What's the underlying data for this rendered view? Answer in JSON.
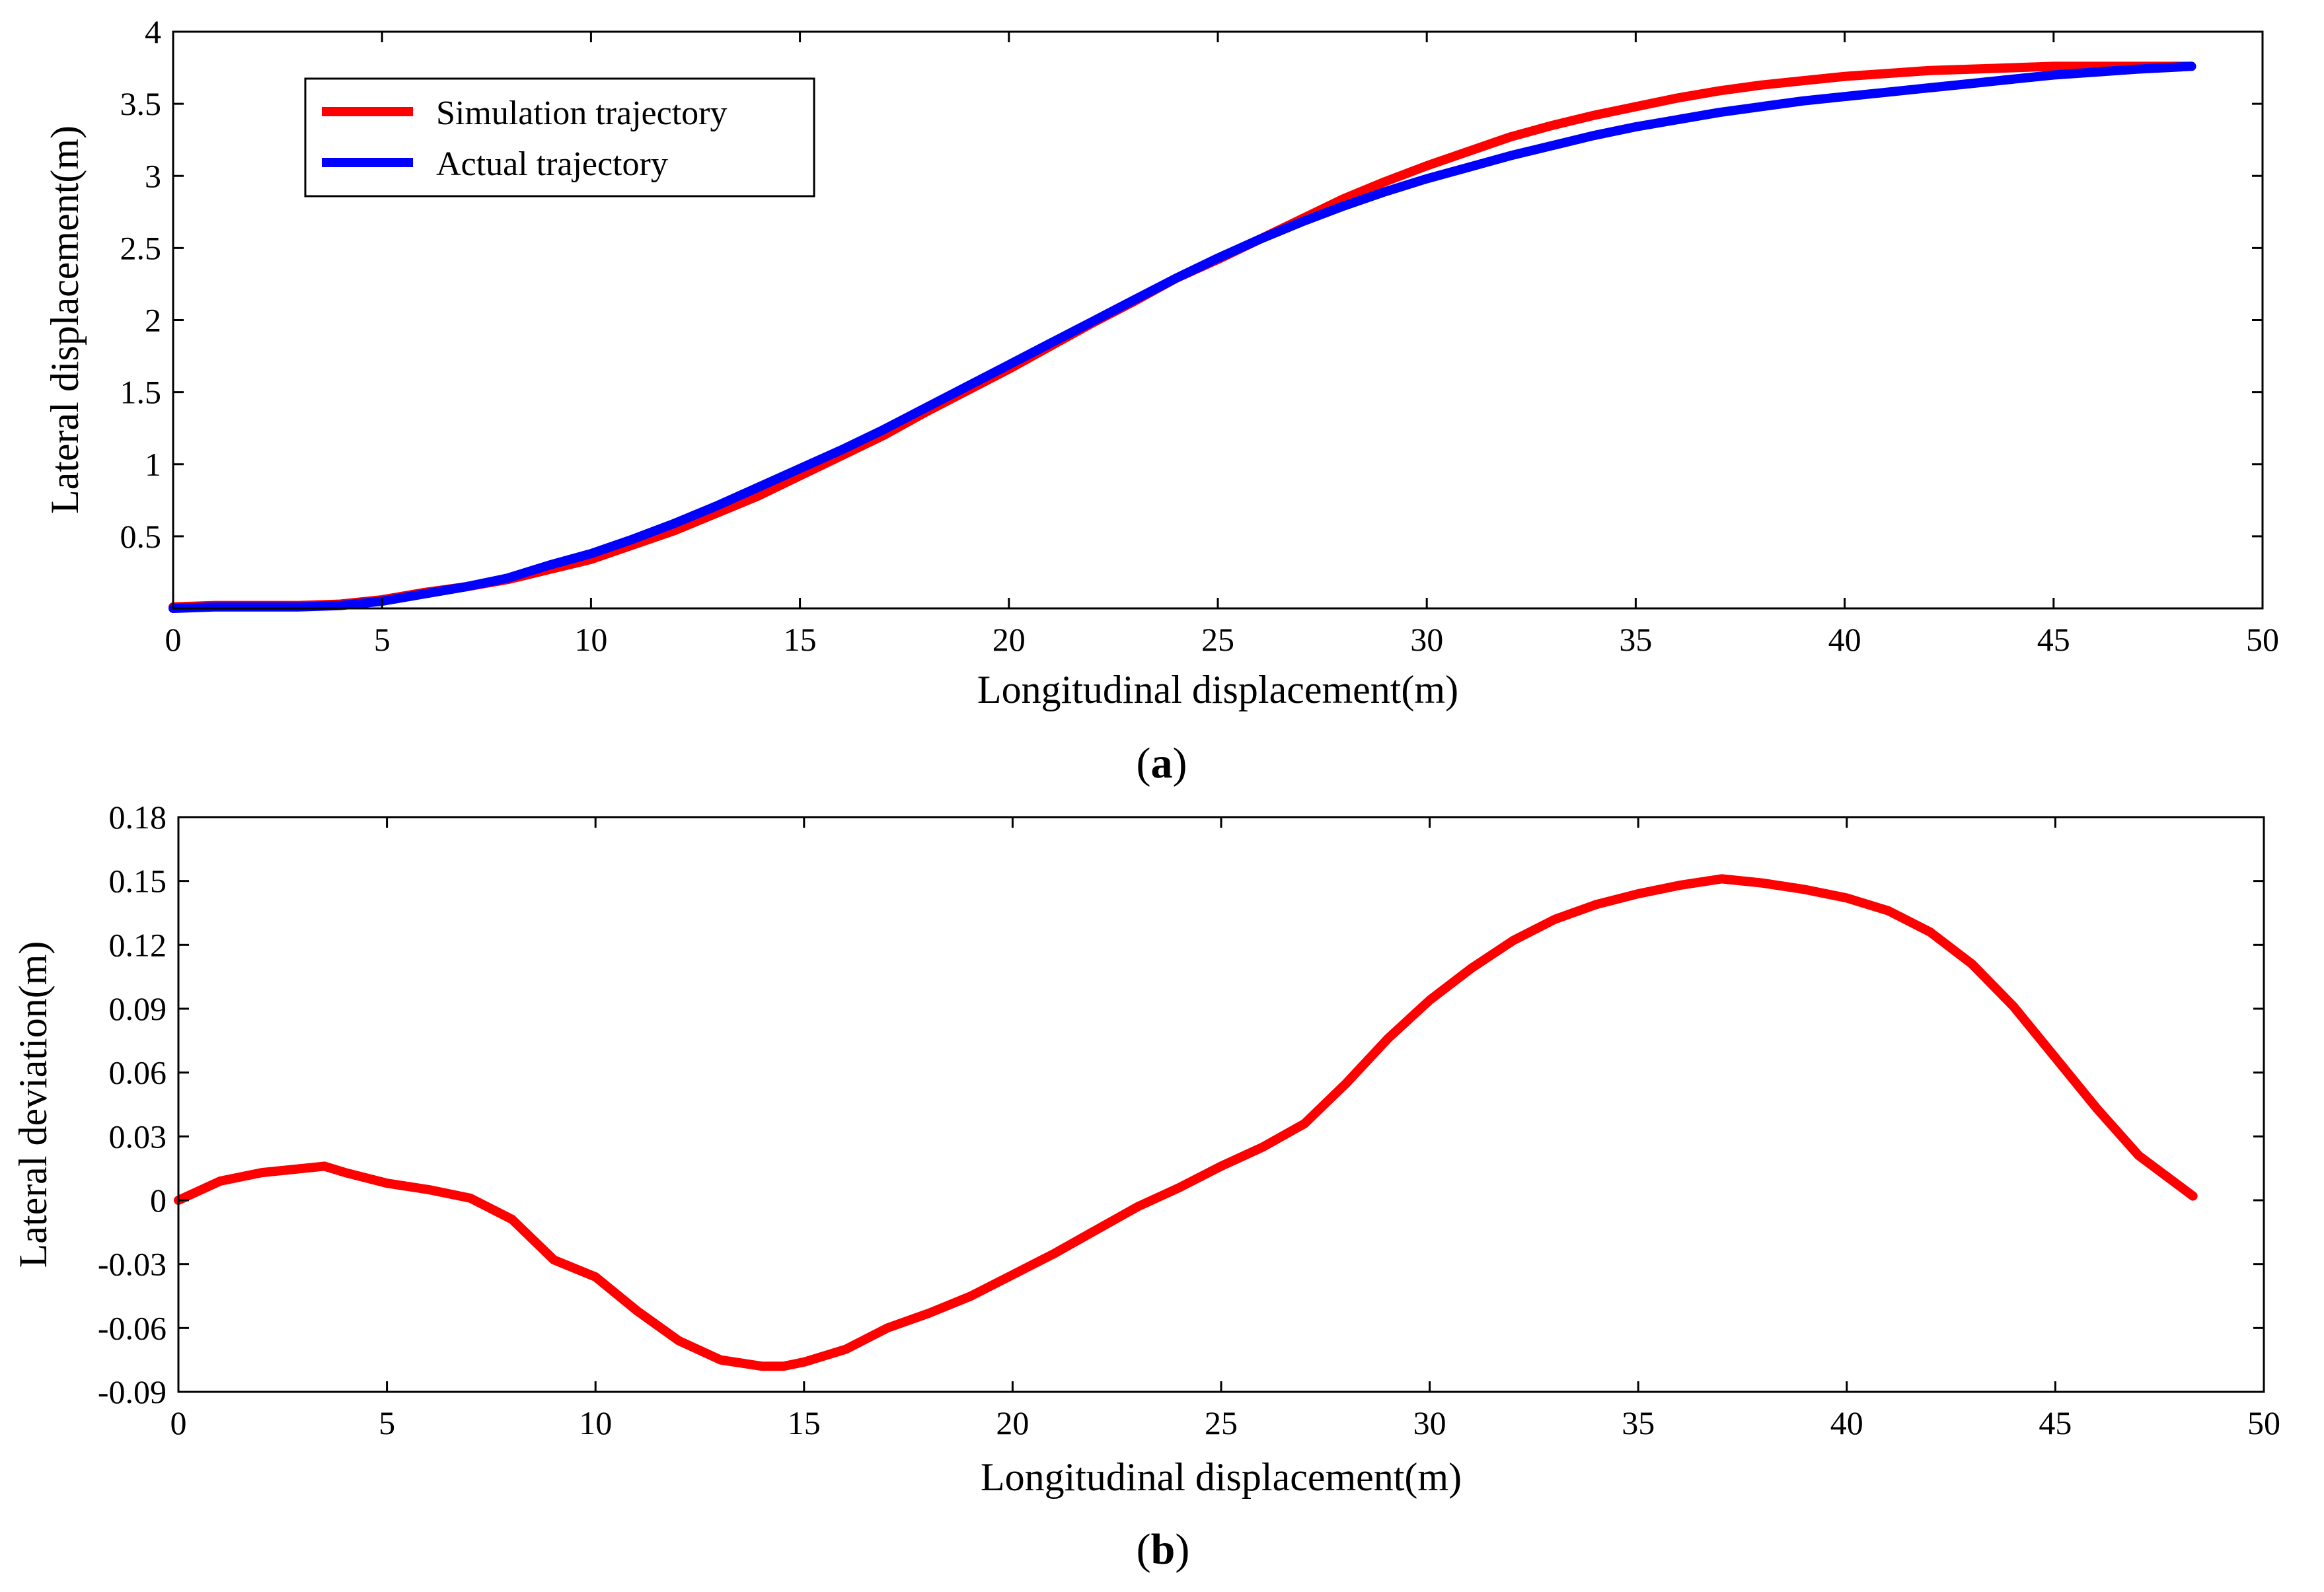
{
  "chart_data": [
    {
      "type": "line",
      "id": "a",
      "caption": "a",
      "xlabel": "Longitudinal displacement(m)",
      "ylabel": "Lateral displacement(m)",
      "xlim": [
        0,
        50
      ],
      "ylim": [
        0,
        4
      ],
      "xticks": [
        0,
        5,
        10,
        15,
        20,
        25,
        30,
        35,
        40,
        45,
        50
      ],
      "yticks": [
        0.5,
        1,
        1.5,
        2,
        2.5,
        3,
        3.5,
        4
      ],
      "xtick_labels": [
        "0",
        "5",
        "10",
        "15",
        "20",
        "25",
        "30",
        "35",
        "40",
        "45",
        "50"
      ],
      "ytick_labels": [
        "0.5",
        "1",
        "1.5",
        "2",
        "2.5",
        "3",
        "3.5",
        "4"
      ],
      "legend_position": "top-left",
      "grid": false,
      "series": [
        {
          "name": "Simulation trajectory",
          "color": "#ff0000",
          "x": [
            0,
            1,
            2,
            3,
            4,
            5,
            6,
            7,
            8,
            9,
            10,
            11,
            12,
            13,
            14,
            15,
            16,
            17,
            18,
            19,
            20,
            21,
            22,
            23,
            24,
            25,
            26,
            27,
            28,
            29,
            30,
            31,
            32,
            33,
            34,
            35,
            36,
            37,
            38,
            39,
            40,
            41,
            42,
            43,
            44,
            45,
            46,
            47,
            48.3
          ],
          "y": [
            0.01,
            0.02,
            0.02,
            0.02,
            0.03,
            0.06,
            0.11,
            0.15,
            0.2,
            0.27,
            0.34,
            0.44,
            0.54,
            0.66,
            0.78,
            0.92,
            1.06,
            1.2,
            1.36,
            1.51,
            1.66,
            1.82,
            1.98,
            2.13,
            2.29,
            2.42,
            2.56,
            2.7,
            2.84,
            2.96,
            3.07,
            3.17,
            3.27,
            3.35,
            3.42,
            3.48,
            3.54,
            3.59,
            3.63,
            3.66,
            3.69,
            3.71,
            3.73,
            3.74,
            3.75,
            3.76,
            3.76,
            3.76,
            3.76
          ]
        },
        {
          "name": "Actual trajectory",
          "color": "#0000ff",
          "x": [
            0,
            1,
            2,
            3,
            4,
            5,
            6,
            7,
            8,
            9,
            10,
            11,
            12,
            13,
            14,
            15,
            16,
            17,
            18,
            19,
            20,
            21,
            22,
            23,
            24,
            25,
            26,
            27,
            28,
            29,
            30,
            31,
            32,
            33,
            34,
            35,
            36,
            37,
            38,
            39,
            40,
            41,
            42,
            43,
            44,
            45,
            46,
            47,
            48.3
          ],
          "y": [
            0,
            0.01,
            0.01,
            0.01,
            0.02,
            0.05,
            0.1,
            0.15,
            0.21,
            0.3,
            0.38,
            0.48,
            0.59,
            0.71,
            0.84,
            0.97,
            1.1,
            1.24,
            1.39,
            1.54,
            1.69,
            1.84,
            1.99,
            2.14,
            2.29,
            2.43,
            2.56,
            2.68,
            2.79,
            2.89,
            2.98,
            3.06,
            3.14,
            3.21,
            3.28,
            3.34,
            3.39,
            3.44,
            3.48,
            3.52,
            3.55,
            3.58,
            3.61,
            3.64,
            3.67,
            3.7,
            3.72,
            3.74,
            3.76
          ]
        }
      ]
    },
    {
      "type": "line",
      "id": "b",
      "caption": "b",
      "xlabel": "Longitudinal displacement(m)",
      "ylabel": "Lateral deviation(m)",
      "xlim": [
        0,
        50
      ],
      "ylim": [
        -0.09,
        0.18
      ],
      "xticks": [
        0,
        5,
        10,
        15,
        20,
        25,
        30,
        35,
        40,
        45,
        50
      ],
      "yticks": [
        -0.09,
        -0.06,
        -0.03,
        0,
        0.03,
        0.06,
        0.09,
        0.12,
        0.15,
        0.18
      ],
      "xtick_labels": [
        "0",
        "5",
        "10",
        "15",
        "20",
        "25",
        "30",
        "35",
        "40",
        "45",
        "50"
      ],
      "ytick_labels": [
        "-0.09",
        "-0.06",
        "-0.03",
        "0",
        "0.03",
        "0.06",
        "0.09",
        "0.12",
        "0.15",
        "0.18"
      ],
      "grid": false,
      "series": [
        {
          "name": "Lateral deviation",
          "color": "#ff0000",
          "x": [
            0,
            1,
            2,
            3,
            3.5,
            4,
            5,
            6,
            7,
            8,
            9,
            10,
            11,
            12,
            13,
            14,
            14.5,
            15,
            16,
            17,
            18,
            19,
            20,
            21,
            22,
            23,
            24,
            25,
            26,
            27,
            28,
            29,
            30,
            31,
            32,
            33,
            34,
            35,
            36,
            37,
            38,
            39,
            40,
            41,
            42,
            43,
            44,
            45,
            46,
            47,
            48.3
          ],
          "y": [
            0,
            0.009,
            0.013,
            0.015,
            0.016,
            0.013,
            0.008,
            0.005,
            0.001,
            -0.009,
            -0.028,
            -0.036,
            -0.052,
            -0.066,
            -0.075,
            -0.078,
            -0.078,
            -0.076,
            -0.07,
            -0.06,
            -0.053,
            -0.045,
            -0.035,
            -0.025,
            -0.014,
            -0.003,
            0.006,
            0.016,
            0.025,
            0.036,
            0.055,
            0.076,
            0.094,
            0.109,
            0.122,
            0.132,
            0.139,
            0.144,
            0.148,
            0.151,
            0.149,
            0.146,
            0.142,
            0.136,
            0.126,
            0.111,
            0.091,
            0.067,
            0.043,
            0.021,
            0.002
          ]
        }
      ]
    }
  ]
}
